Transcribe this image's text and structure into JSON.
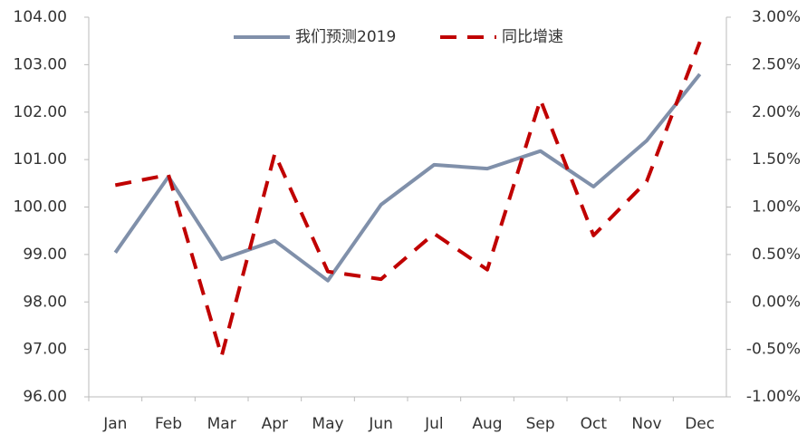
{
  "chart_data": {
    "type": "line",
    "categories": [
      "Jan",
      "Feb",
      "Mar",
      "Apr",
      "May",
      "Jun",
      "Jul",
      "Aug",
      "Sep",
      "Oct",
      "Nov",
      "Dec"
    ],
    "series": [
      {
        "name": "我们预测2019",
        "color": "#8090aa",
        "dashed": false,
        "values": [
          99.04,
          100.64,
          98.9,
          99.29,
          98.45,
          100.05,
          100.89,
          100.81,
          101.18,
          100.43,
          101.4,
          102.8
        ]
      },
      {
        "name": "同比增速",
        "color": "#c00000",
        "dashed": true,
        "axis": "y2",
        "values": [
          1.23,
          1.34,
          -0.57,
          1.56,
          0.32,
          0.24,
          0.72,
          0.34,
          2.13,
          0.7,
          1.27,
          2.74
        ]
      }
    ],
    "ylim": [
      96,
      104
    ],
    "yticks": [
      {
        "value": 96,
        "label": "96.00"
      },
      {
        "value": 97,
        "label": "97.00"
      },
      {
        "value": 98,
        "label": "98.00"
      },
      {
        "value": 99,
        "label": "99.00"
      },
      {
        "value": 100,
        "label": "100.00"
      },
      {
        "value": 101,
        "label": "101.00"
      },
      {
        "value": 102,
        "label": "102.00"
      },
      {
        "value": 103,
        "label": "103.00"
      },
      {
        "value": 104,
        "label": "104.00"
      }
    ],
    "y2lim": [
      -1,
      3
    ],
    "y2ticks": [
      {
        "value": -1,
        "label": "-1.00%"
      },
      {
        "value": -0.5,
        "label": "-0.50%"
      },
      {
        "value": 0,
        "label": "0.00%"
      },
      {
        "value": 0.5,
        "label": "0.50%"
      },
      {
        "value": 1,
        "label": "1.00%"
      },
      {
        "value": 1.5,
        "label": "1.50%"
      },
      {
        "value": 2,
        "label": "2.00%"
      },
      {
        "value": 2.5,
        "label": "2.50%"
      },
      {
        "value": 3,
        "label": "3.00%"
      }
    ],
    "legend": "top"
  }
}
